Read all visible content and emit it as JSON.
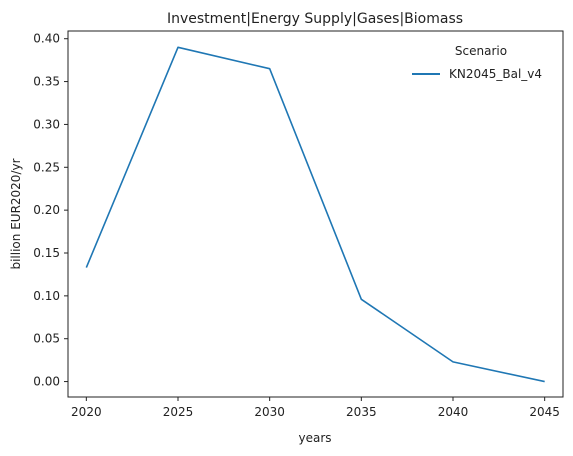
{
  "chart_data": {
    "type": "line",
    "title": "Investment|Energy Supply|Gases|Biomass",
    "xlabel": "years",
    "ylabel": "billion EUR2020/yr",
    "x": [
      2020,
      2025,
      2030,
      2035,
      2040,
      2045
    ],
    "x_ticks": [
      "2020",
      "2025",
      "2030",
      "2035",
      "2040",
      "2045"
    ],
    "y_ticks": [
      "0.00",
      "0.05",
      "0.10",
      "0.15",
      "0.20",
      "0.25",
      "0.30",
      "0.35",
      "0.40"
    ],
    "ylim": [
      -0.018,
      0.409
    ],
    "xlim": [
      2019,
      2046
    ],
    "grid": false,
    "legend": {
      "title": "Scenario",
      "placement": "top-right"
    },
    "series": [
      {
        "name": "KN2045_Bal_v4",
        "color": "#1f77b4",
        "values": [
          0.133,
          0.39,
          0.365,
          0.096,
          0.023,
          0.0
        ]
      }
    ]
  }
}
